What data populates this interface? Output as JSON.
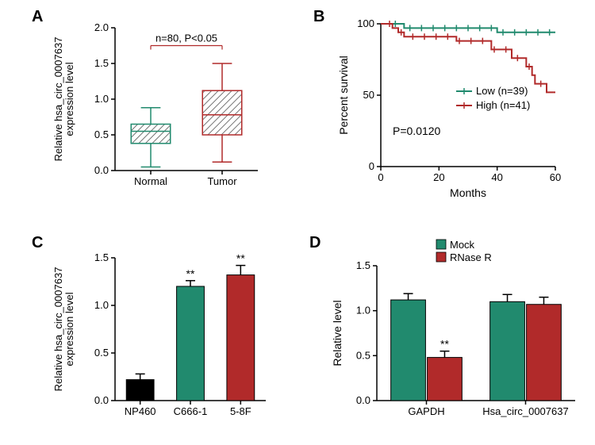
{
  "panel_label_font_size": "20px",
  "panel_label_weight": "bold",
  "significance_label": "**",
  "colors": {
    "black": "#000000",
    "green": "#218a6e",
    "dark_red": "#b12a2a",
    "hatch_gray": "#666666"
  },
  "panelA": {
    "label": "A",
    "y_label": "Relative hsa_circ_0007637\nexpression level",
    "annotation": "n=80, P<0.05",
    "categories": [
      "Normal",
      "Tumor"
    ],
    "ylim": [
      0,
      2.0
    ],
    "yticks": [
      0,
      0.5,
      1.0,
      1.5,
      2.0
    ],
    "box_data": {
      "Normal": {
        "min": 0.05,
        "q1": 0.38,
        "median": 0.55,
        "q3": 0.65,
        "max": 0.88,
        "border_color": "#218a6e"
      },
      "Tumor": {
        "min": 0.12,
        "q1": 0.5,
        "median": 0.78,
        "q3": 1.12,
        "max": 1.5,
        "border_color": "#b12a2a"
      }
    },
    "box_width": 0.55,
    "hatch_pattern": "diagonal"
  },
  "panelB": {
    "label": "B",
    "y_label": "Percent survival",
    "x_label": "Months",
    "legend": [
      {
        "label": "Low (n=39)",
        "color": "#218a6e"
      },
      {
        "label": "High (n=41)",
        "color": "#b12a2a"
      }
    ],
    "p_value_text": "P=0.0120",
    "xlim": [
      0,
      60
    ],
    "xticks": [
      0,
      20,
      40,
      60
    ],
    "ylim": [
      0,
      100
    ],
    "yticks": [
      0,
      50,
      100
    ],
    "curves": {
      "low": {
        "color": "#218a6e",
        "points": [
          [
            0,
            100
          ],
          [
            5,
            100
          ],
          [
            8,
            97
          ],
          [
            12,
            97
          ],
          [
            22,
            97
          ],
          [
            38,
            97
          ],
          [
            40,
            94
          ],
          [
            50,
            94
          ],
          [
            55,
            94
          ],
          [
            60,
            94
          ]
        ],
        "censor_ticks": [
          5,
          10,
          14,
          18,
          22,
          26,
          30,
          34,
          38,
          42,
          46,
          50,
          54,
          58
        ]
      },
      "high": {
        "color": "#b12a2a",
        "points": [
          [
            0,
            100
          ],
          [
            3,
            100
          ],
          [
            4,
            97
          ],
          [
            6,
            94
          ],
          [
            8,
            91
          ],
          [
            12,
            91
          ],
          [
            16,
            91
          ],
          [
            25,
            91
          ],
          [
            26,
            88
          ],
          [
            36,
            88
          ],
          [
            38,
            82
          ],
          [
            44,
            82
          ],
          [
            45,
            76
          ],
          [
            50,
            70
          ],
          [
            52,
            64
          ],
          [
            53,
            58
          ],
          [
            56,
            58
          ],
          [
            57,
            52
          ],
          [
            60,
            52
          ]
        ],
        "censor_ticks": [
          3,
          7,
          11,
          15,
          19,
          23,
          27,
          31,
          35,
          39,
          43,
          47,
          51,
          55
        ]
      }
    }
  },
  "panelC": {
    "label": "C",
    "y_label": "Relative hsa_circ_0007637\nexpression level",
    "categories": [
      "NP460",
      "C666-1",
      "5-8F"
    ],
    "ylim": [
      0,
      1.5
    ],
    "yticks": [
      0,
      0.5,
      1.0,
      1.5
    ],
    "bars": [
      {
        "label": "NP460",
        "value": 0.22,
        "err": 0.06,
        "fill": "#000000",
        "sig": null
      },
      {
        "label": "C666-1",
        "value": 1.2,
        "err": 0.06,
        "fill": "#218a6e",
        "sig": "**"
      },
      {
        "label": "5-8F",
        "value": 1.32,
        "err": 0.1,
        "fill": "#b12a2a",
        "sig": "**"
      }
    ],
    "bar_width": 0.55
  },
  "panelD": {
    "label": "D",
    "y_label": "Relative level",
    "legend": [
      {
        "label": "Mock",
        "color": "#218a6e"
      },
      {
        "label": "RNase R",
        "color": "#b12a2a"
      }
    ],
    "categories": [
      "GAPDH",
      "Hsa_circ_0007637"
    ],
    "ylim": [
      0,
      1.5
    ],
    "yticks": [
      0,
      0.5,
      1.0,
      1.5
    ],
    "groups": [
      {
        "category": "GAPDH",
        "bars": [
          {
            "series": "Mock",
            "value": 1.12,
            "err": 0.07,
            "fill": "#218a6e",
            "sig": null
          },
          {
            "series": "RNase R",
            "value": 0.48,
            "err": 0.07,
            "fill": "#b12a2a",
            "sig": "**"
          }
        ]
      },
      {
        "category": "Hsa_circ_0007637",
        "bars": [
          {
            "series": "Mock",
            "value": 1.1,
            "err": 0.08,
            "fill": "#218a6e",
            "sig": null
          },
          {
            "series": "RNase R",
            "value": 1.07,
            "err": 0.08,
            "fill": "#b12a2a",
            "sig": null
          }
        ]
      }
    ],
    "bar_width": 0.35
  }
}
